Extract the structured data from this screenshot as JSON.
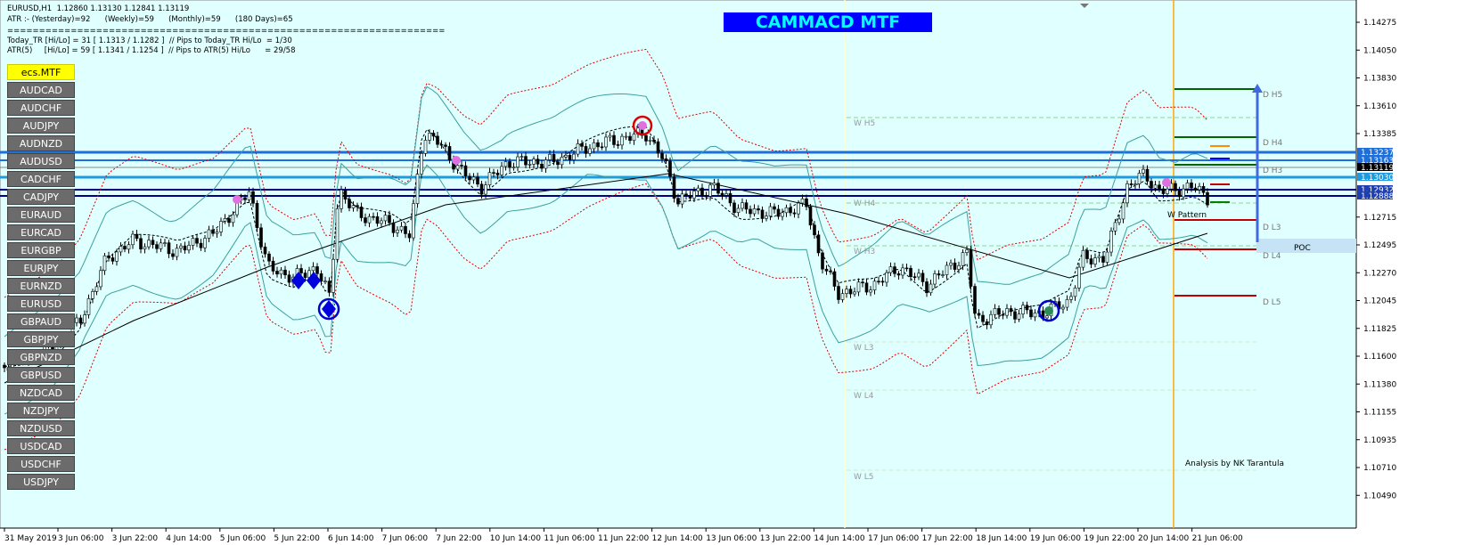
{
  "header": {
    "symbol_line": "EURUSD,H1  1.12860 1.13130 1.12841 1.13119",
    "atr_line": "ATR :- (Yesterday)=92      (Weekly)=59      (Monthly)=59      (180 Days)=65",
    "separator": "=====================================================================",
    "today_tr_line": "Today_TR [Hi/Lo] = 31 [ 1.1313 / 1.1282 ]  // Pips to Today_TR Hi/Lo  = 1/30",
    "atr5_line": "ATR(5)     [Hi/Lo] = 59 [ 1.1341 / 1.1254 ]  // Pips to ATR(5) Hi/Lo      = 29/58"
  },
  "title": "CAMMACD MTF",
  "symbol_buttons": [
    "ecs.MTF",
    "AUDCAD",
    "AUDCHF",
    "AUDJPY",
    "AUDNZD",
    "AUDUSD",
    "CADCHF",
    "CADJPY",
    "EURAUD",
    "EURCAD",
    "EURGBP",
    "EURJPY",
    "EURNZD",
    "EURUSD",
    "GBPAUD",
    "GBPJPY",
    "GBPNZD",
    "GBPUSD",
    "NZDCAD",
    "NZDJPY",
    "NZDUSD",
    "USDCAD",
    "USDCHF",
    "USDJPY"
  ],
  "price_axis": [
    "1.14275",
    "1.14050",
    "1.13830",
    "1.13610",
    "1.13385",
    "1.12715",
    "1.12495",
    "1.12270",
    "1.12045",
    "1.11825",
    "1.11600",
    "1.11380",
    "1.11155",
    "1.10935",
    "1.10710",
    "1.10490"
  ],
  "highlighted_prices": [
    "1.13237",
    "1.13163",
    "1.13119",
    "1.13030",
    "1.12932",
    "1.12888"
  ],
  "time_axis": [
    "31 May 2019",
    "3 Jun 06:00",
    "3 Jun 22:00",
    "4 Jun 14:00",
    "5 Jun 06:00",
    "5 Jun 22:00",
    "6 Jun 14:00",
    "7 Jun 06:00",
    "7 Jun 22:00",
    "10 Jun 14:00",
    "11 Jun 06:00",
    "11 Jun 22:00",
    "12 Jun 14:00",
    "13 Jun 06:00",
    "13 Jun 22:00",
    "14 Jun 14:00",
    "17 Jun 06:00",
    "17 Jun 22:00",
    "18 Jun 14:00",
    "19 Jun 06:00",
    "19 Jun 22:00",
    "20 Jun 14:00",
    "21 Jun 06:00"
  ],
  "levels": {
    "weekly": [
      "W H5",
      "W H4",
      "W H3",
      "W L3",
      "W L4",
      "W L5"
    ],
    "daily": [
      "D H5",
      "D H4",
      "D H3",
      "D L3",
      "D L4",
      "D L5"
    ]
  },
  "annotations": {
    "pattern": "W Pattern",
    "poc": "POC",
    "credit": "Analysis by NK Tarantula"
  }
}
